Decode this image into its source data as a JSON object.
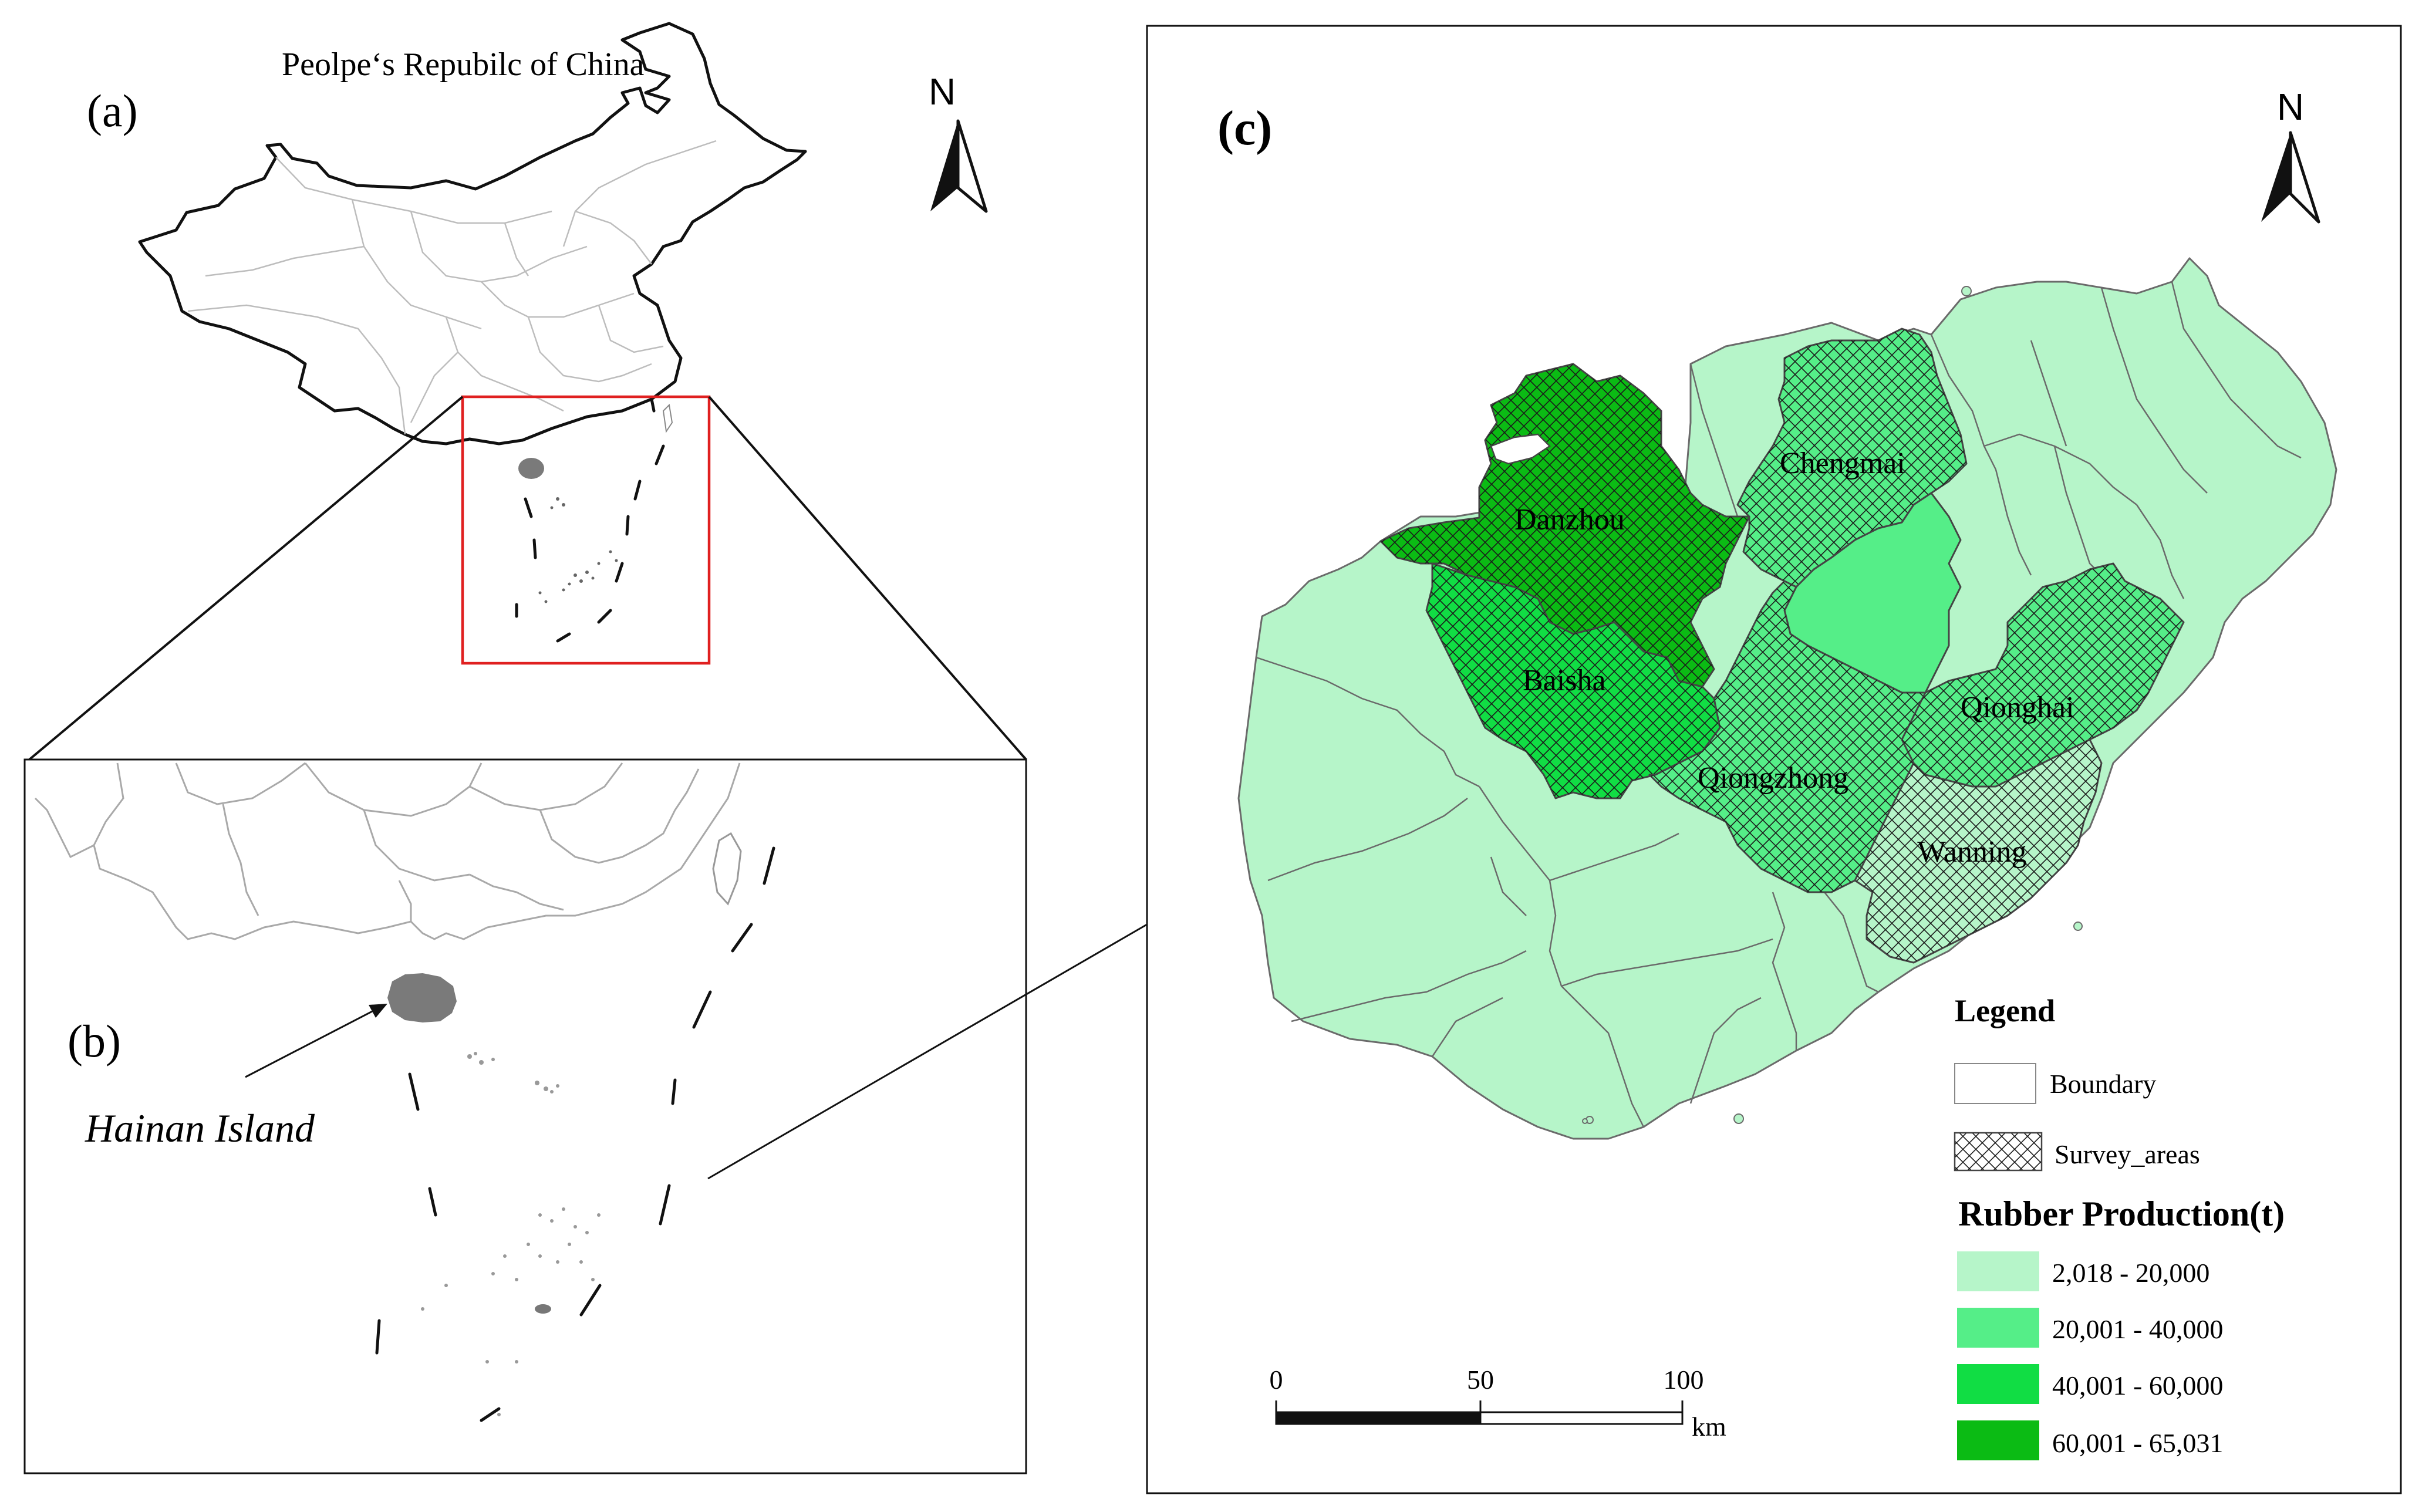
{
  "panel_a": {
    "label": "(a)",
    "title": "Peolpe‘s Repubilc of  China",
    "north": "N"
  },
  "panel_b": {
    "label": "(b)",
    "callout": "Hainan Island"
  },
  "panel_c": {
    "label": "(c)",
    "north": "N",
    "regions": {
      "danzhou": "Danzhou",
      "chengmai": "Chengmai",
      "baisha": "Baisha",
      "qionghai": "Qionghai",
      "qiongzhong": "Qiongzhong",
      "wanning": "Wanning"
    },
    "legend": {
      "title": "Legend",
      "boundary": "Boundary",
      "survey": "Survey_areas",
      "production_title": "Rubber Production(t)",
      "classes": [
        {
          "label": "2,018 - 20,000",
          "color": "#b6f5c9"
        },
        {
          "label": "20,001 - 40,000",
          "color": "#55ee88"
        },
        {
          "label": "40,001 - 60,000",
          "color": "#11dd44"
        },
        {
          "label": "60,001 - 65,031",
          "color": "#0bbb14"
        }
      ]
    },
    "scale": {
      "t0": "0",
      "t50": "50",
      "t100": "100",
      "unit": "km"
    }
  },
  "colors": {
    "light_green": "#b6f5c9",
    "mid_green": "#55ee88",
    "bright_green": "#11dd44",
    "dark_green": "#0bbb14",
    "china_fill": "#ffffff",
    "hainan_gray": "#7a7a7a",
    "inset_box": "#e02020"
  }
}
